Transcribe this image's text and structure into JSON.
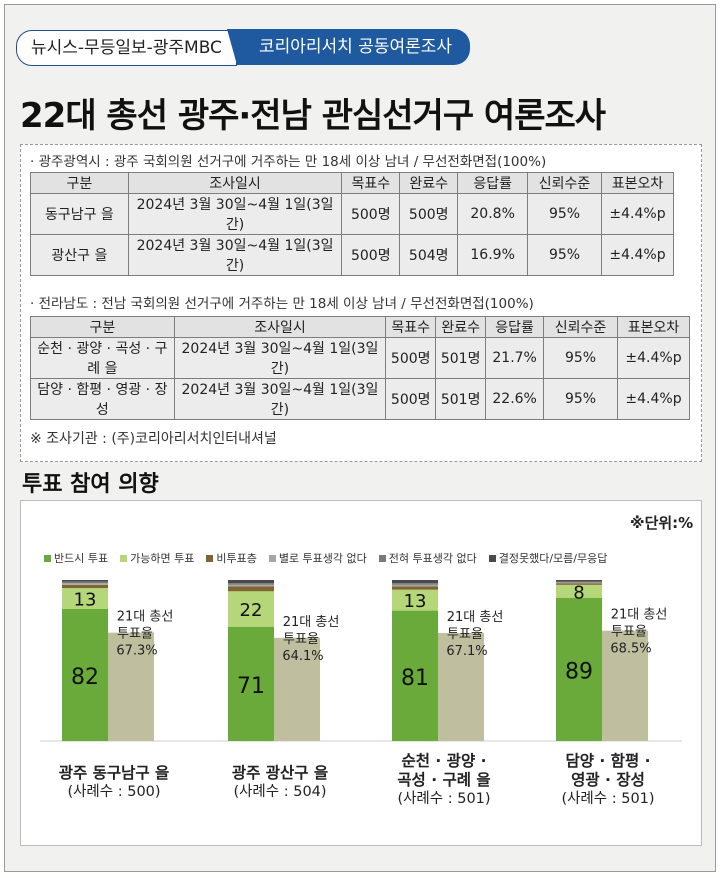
{
  "header": {
    "tab_left": "뉴시스-무등일보-광주MBC",
    "tab_right": "코리아리서치 공동여론조사",
    "title": "22대 총선 광주·전남 관심선거구 여론조사"
  },
  "survey": {
    "gwangju_line": "· 광주광역시 : 광주 국회의원 선거구에 거주하는 만 18세 이상 남녀 / 무선전화면접(100%)",
    "jeonnam_line": "· 전라남도 : 전남 국회의원 선거구에 거주하는 만 18세 이상 남녀 / 무선전화면접(100%)",
    "headers": [
      "구분",
      "조사일시",
      "목표수",
      "완료수",
      "응답률",
      "신뢰수준",
      "표본오차"
    ],
    "gwangju_rows": [
      [
        "동구남구 을",
        "2024년 3월 30일~4월 1일(3일간)",
        "500명",
        "500명",
        "20.8%",
        "95%",
        "±4.4%p"
      ],
      [
        "광산구 을",
        "2024년 3월 30일~4월 1일(3일간)",
        "500명",
        "504명",
        "16.9%",
        "95%",
        "±4.4%p"
      ]
    ],
    "jeonnam_rows": [
      [
        "순천 · 광양 · 곡성 · 구례 을",
        "2024년 3월 30일~4월 1일(3일간)",
        "500명",
        "501명",
        "21.7%",
        "95%",
        "±4.4%p"
      ],
      [
        "담양 · 함평 · 영광 · 장성",
        "2024년 3월 30일~4월 1일(3일간)",
        "500명",
        "501명",
        "22.6%",
        "95%",
        "±4.4%p"
      ]
    ],
    "note": "※ 조사기관 : (주)코리아리서치인터내셔널"
  },
  "section_title": "투표 참여 의향",
  "chart_data": {
    "type": "bar",
    "unit": "※단위:%",
    "categories": [
      "광주 동구남구 을",
      "광주 광산구 을",
      "순천 · 광양 · 곡성 · 구례 을",
      "담양 · 함평 · 영광 · 장성"
    ],
    "category_lines": [
      [
        "광주 동구남구 을"
      ],
      [
        "광주 광산구 을"
      ],
      [
        "순천 · 광양 ·",
        "곡성 · 구례 을"
      ],
      [
        "담양 · 함평 ·",
        "영광 · 장성"
      ]
    ],
    "samples": [
      "(사례수 : 500)",
      "(사례수 : 504)",
      "(사례수 : 501)",
      "(사례수 : 501)"
    ],
    "series": [
      {
        "name": "반드시 투표",
        "color": "#6aaa3a",
        "values": [
          82,
          71,
          81,
          89
        ]
      },
      {
        "name": "가능하면 투표",
        "color": "#b5d77a",
        "values": [
          13,
          22,
          13,
          8
        ]
      },
      {
        "name": "비투표층",
        "color": "#7f6531",
        "values": [
          2,
          3,
          2,
          1
        ]
      },
      {
        "name": "별로 투표생각 없다",
        "color": "#a6a6a6",
        "values": [
          1,
          1,
          1,
          0.5
        ]
      },
      {
        "name": "전혀 투표생각 없다",
        "color": "#7a7a7a",
        "values": [
          1,
          1,
          1,
          0.5
        ]
      },
      {
        "name": "결정못했다/모름/무응답",
        "color": "#4a4a4a",
        "values": [
          1,
          2,
          2,
          1
        ]
      }
    ],
    "comparison": {
      "label_line1": "21대 총선",
      "label_line2": "투표율",
      "color": "#bfbf9f",
      "values": [
        67.3,
        64.1,
        67.1,
        68.5
      ],
      "value_labels": [
        "67.3%",
        "64.1%",
        "67.1%",
        "68.5%"
      ]
    },
    "ylim": [
      0,
      100
    ]
  }
}
